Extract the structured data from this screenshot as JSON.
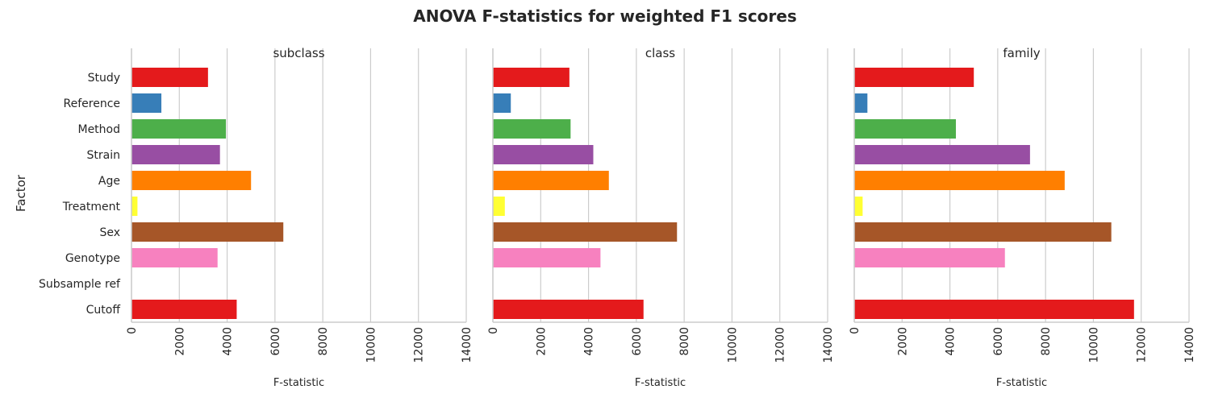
{
  "chart_data": {
    "type": "bar",
    "orientation": "horizontal",
    "title": "ANOVA F-statistics for weighted F1 scores",
    "ylabel": "Factor",
    "xlabel": "F-statistic",
    "xlim": [
      0,
      14000
    ],
    "xticks": [
      0,
      2000,
      4000,
      6000,
      8000,
      10000,
      12000,
      14000
    ],
    "grid": true,
    "categories": [
      "Study",
      "Reference",
      "Method",
      "Strain",
      "Age",
      "Treatment",
      "Sex",
      "Genotype",
      "Subsample ref",
      "Cutoff"
    ],
    "colors": [
      "#e41a1c",
      "#377eb8",
      "#4daf4a",
      "#984ea3",
      "#ff7f00",
      "#ffff33",
      "#a65628",
      "#f781bf",
      "#999999",
      "#e41a1c"
    ],
    "panels": [
      {
        "name": "subclass",
        "values": [
          3200,
          1250,
          3950,
          3700,
          5000,
          250,
          6350,
          3600,
          0,
          4400
        ]
      },
      {
        "name": "class",
        "values": [
          3200,
          750,
          3250,
          4200,
          4850,
          500,
          7700,
          4500,
          0,
          6300
        ]
      },
      {
        "name": "family",
        "values": [
          5000,
          550,
          4250,
          7350,
          8800,
          350,
          10750,
          6300,
          0,
          11700
        ]
      }
    ]
  }
}
